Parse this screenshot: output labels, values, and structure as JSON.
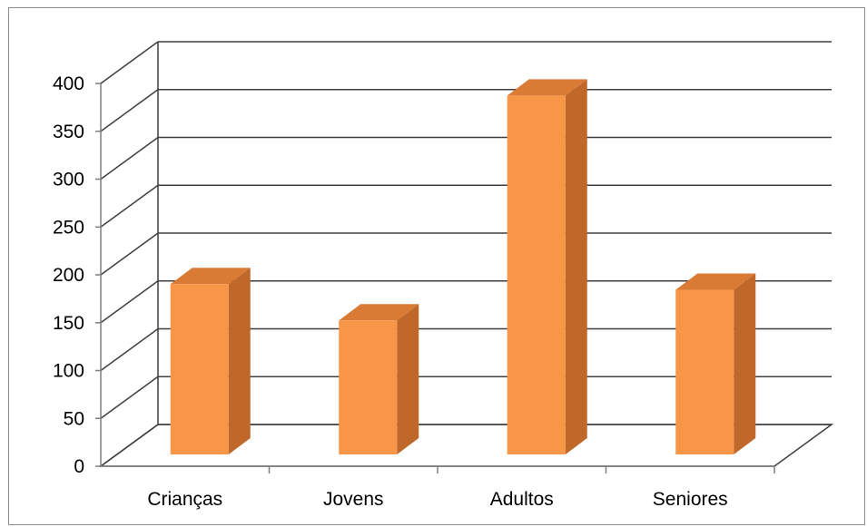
{
  "chart_data": {
    "type": "bar",
    "style": "3d-column",
    "categories": [
      "Crianças",
      "Jovens",
      "Adultos",
      "Seniores"
    ],
    "values": [
      178,
      140,
      375,
      172
    ],
    "ylim": [
      0,
      400
    ],
    "yticks": [
      "0",
      "50",
      "100",
      "150",
      "200",
      "250",
      "300",
      "350",
      "400"
    ],
    "title": "",
    "xlabel": "",
    "ylabel": "",
    "grid": true,
    "legend": false,
    "colors": {
      "bar_front": "#f79646",
      "bar_side": "#c0682a",
      "bar_top": "#d97a35",
      "grid": "#3f3f3f",
      "axis": "#7f7f7f"
    }
  }
}
